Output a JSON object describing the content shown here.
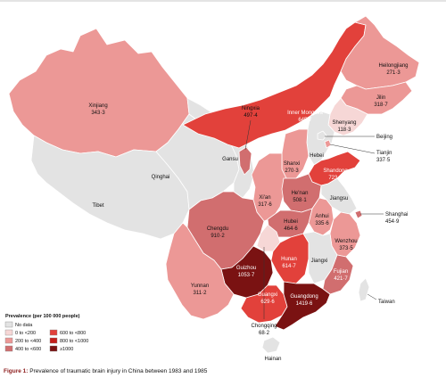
{
  "colors": {
    "no_data": "#e3e3e3",
    "c0_200": "#f6d7d6",
    "c200_400": "#ec9896",
    "c400_600": "#d16e6f",
    "c600_800": "#e2413b",
    "c800_1000": "#c41e1a",
    "c1000": "#7a1212"
  },
  "provinces": {
    "xinjiang": {
      "name": "Xinjiang",
      "value": "343·3"
    },
    "tibet": {
      "name": "Tibet"
    },
    "qinghai": {
      "name": "Qinghai"
    },
    "gansu": {
      "name": "Gansu"
    },
    "ningxia": {
      "name": "Ningxia",
      "value": "497·4"
    },
    "inner_mongolia": {
      "name": "Inner Mongolia",
      "value": "645·7"
    },
    "heilongjiang": {
      "name": "Heilongjiang",
      "value": "271·3"
    },
    "jilin": {
      "name": "Jilin",
      "value": "318·7"
    },
    "shenyang": {
      "name": "Shenyang",
      "value": "118·3"
    },
    "beijing": {
      "name": "Beijing"
    },
    "tianjin": {
      "name": "Tianjin",
      "value": "337·5"
    },
    "hebei": {
      "name": "Hebei"
    },
    "shanxi": {
      "name": "Shanxi",
      "value": "270·3"
    },
    "shandong": {
      "name": "Shandong",
      "value": "723·8"
    },
    "xian": {
      "name": "Xi'an",
      "value": "317·6"
    },
    "henan": {
      "name": "He'nan",
      "value": "508·1"
    },
    "jiangsu": {
      "name": "Jiangsu"
    },
    "shanghai": {
      "name": "Shanghai",
      "value": "454·9"
    },
    "anhui": {
      "name": "Anhui",
      "value": "335·6"
    },
    "hubei": {
      "name": "Hubei",
      "value": "464·6"
    },
    "chengdu": {
      "name": "Chengdu",
      "value": "910·2"
    },
    "wenzhou": {
      "name": "Wenzhou",
      "value": "373·5"
    },
    "hunan": {
      "name": "Hunan",
      "value": "614·7"
    },
    "jiangxi": {
      "name": "Jiangxi"
    },
    "fujian": {
      "name": "Fujian",
      "value": "421·7"
    },
    "guizhou": {
      "name": "Guizhou",
      "value": "1053·7"
    },
    "yunnan": {
      "name": "Yunnan",
      "value": "311·2"
    },
    "guangxi": {
      "name": "Guangxi",
      "value": "629·6"
    },
    "guangdong": {
      "name": "Guangdong",
      "value": "1419·6"
    },
    "chongqing": {
      "name": "Chongqing",
      "value": "68·2"
    },
    "taiwan": {
      "name": "Taiwan"
    },
    "hainan": {
      "name": "Hainan"
    }
  },
  "legend": {
    "title": "Prevalence (per 100 000 people)",
    "items": [
      {
        "label": "No data",
        "color": "#e3e3e3"
      },
      {
        "label": "0 to <200",
        "color": "#f6d7d6"
      },
      {
        "label": "200 to <400",
        "color": "#ec9896"
      },
      {
        "label": "400 to <600",
        "color": "#d16e6f"
      },
      {
        "label": "600 to <800",
        "color": "#e2413b"
      },
      {
        "label": "800 to <1000",
        "color": "#c41e1a"
      },
      {
        "label": "≥1000",
        "color": "#7a1212"
      }
    ]
  },
  "caption": {
    "figure": "Figure 1:",
    "text": " Prevalence of traumatic brain injury in China between 1983 and 1985"
  }
}
